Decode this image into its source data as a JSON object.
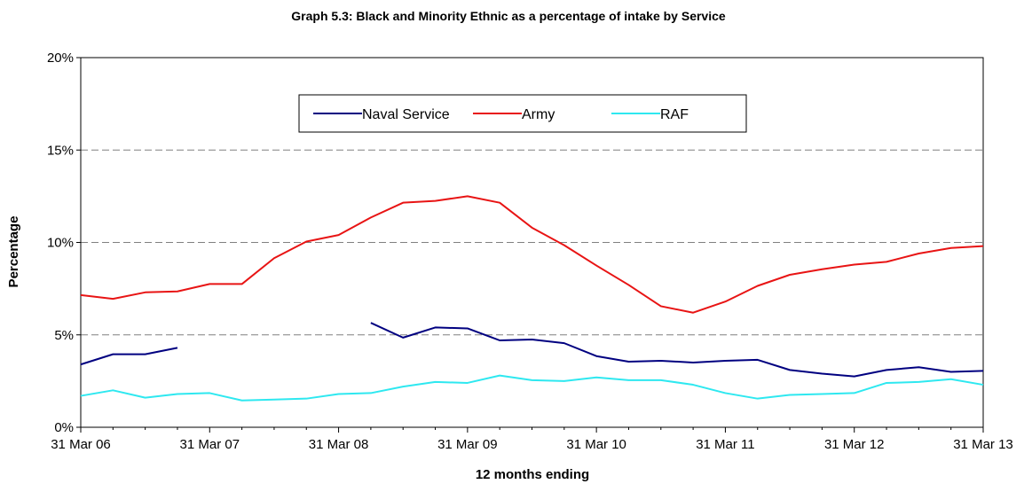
{
  "chart_data": {
    "type": "line",
    "title": "Graph 5.3: Black and Minority Ethnic as a percentage of intake by Service",
    "xlabel": "12 months ending",
    "ylabel": "Percentage",
    "ylim": [
      0,
      20
    ],
    "yticks": [
      0,
      5,
      10,
      15,
      20
    ],
    "ytick_labels": [
      "0%",
      "5%",
      "10%",
      "15%",
      "20%"
    ],
    "x_ticks": [
      "31 Mar 06",
      "31 Mar 07",
      "31 Mar 08",
      "31 Mar 09",
      "31 Mar 10",
      "31 Mar 11",
      "31 Mar 12",
      "31 Mar 13"
    ],
    "x": [
      "31 Mar 06",
      "30 Jun 06",
      "30 Sep 06",
      "31 Dec 06",
      "31 Mar 07",
      "30 Jun 07",
      "30 Sep 07",
      "31 Dec 07",
      "31 Mar 08",
      "30 Jun 08",
      "30 Sep 08",
      "31 Dec 08",
      "31 Mar 09",
      "30 Jun 09",
      "30 Sep 09",
      "31 Dec 09",
      "31 Mar 10",
      "30 Jun 10",
      "30 Sep 10",
      "31 Dec 10",
      "31 Mar 11",
      "30 Jun 11",
      "30 Sep 11",
      "31 Dec 11",
      "31 Mar 12",
      "30 Jun 12",
      "30 Sep 12",
      "31 Dec 12",
      "31 Mar 13"
    ],
    "grid": "horizontal dashed",
    "legend": "top-center",
    "series": [
      {
        "name": "Naval Service",
        "color": "#000080",
        "values": [
          3.4,
          3.95,
          3.95,
          4.3,
          null,
          null,
          null,
          null,
          null,
          5.65,
          4.85,
          5.4,
          5.35,
          4.7,
          4.75,
          4.55,
          3.85,
          3.55,
          3.6,
          3.5,
          3.6,
          3.65,
          3.1,
          2.9,
          2.75,
          3.1,
          3.25,
          3.0,
          3.05
        ]
      },
      {
        "name": "Army",
        "color": "#e81414",
        "values": [
          7.15,
          6.95,
          7.3,
          7.35,
          7.75,
          7.75,
          9.15,
          10.05,
          10.4,
          11.35,
          12.15,
          12.25,
          12.5,
          12.15,
          10.8,
          9.85,
          8.75,
          7.7,
          6.55,
          6.2,
          6.8,
          7.65,
          8.25,
          8.55,
          8.8,
          8.95,
          9.4,
          9.7,
          9.8
        ]
      },
      {
        "name": "RAF",
        "color": "#2ee8f0",
        "values": [
          1.7,
          2.0,
          1.6,
          1.8,
          1.85,
          1.45,
          1.5,
          1.55,
          1.8,
          1.85,
          2.2,
          2.45,
          2.4,
          2.8,
          2.55,
          2.5,
          2.7,
          2.55,
          2.55,
          2.3,
          1.85,
          1.55,
          1.75,
          1.8,
          1.85,
          2.4,
          2.45,
          2.6,
          2.3
        ]
      }
    ]
  }
}
